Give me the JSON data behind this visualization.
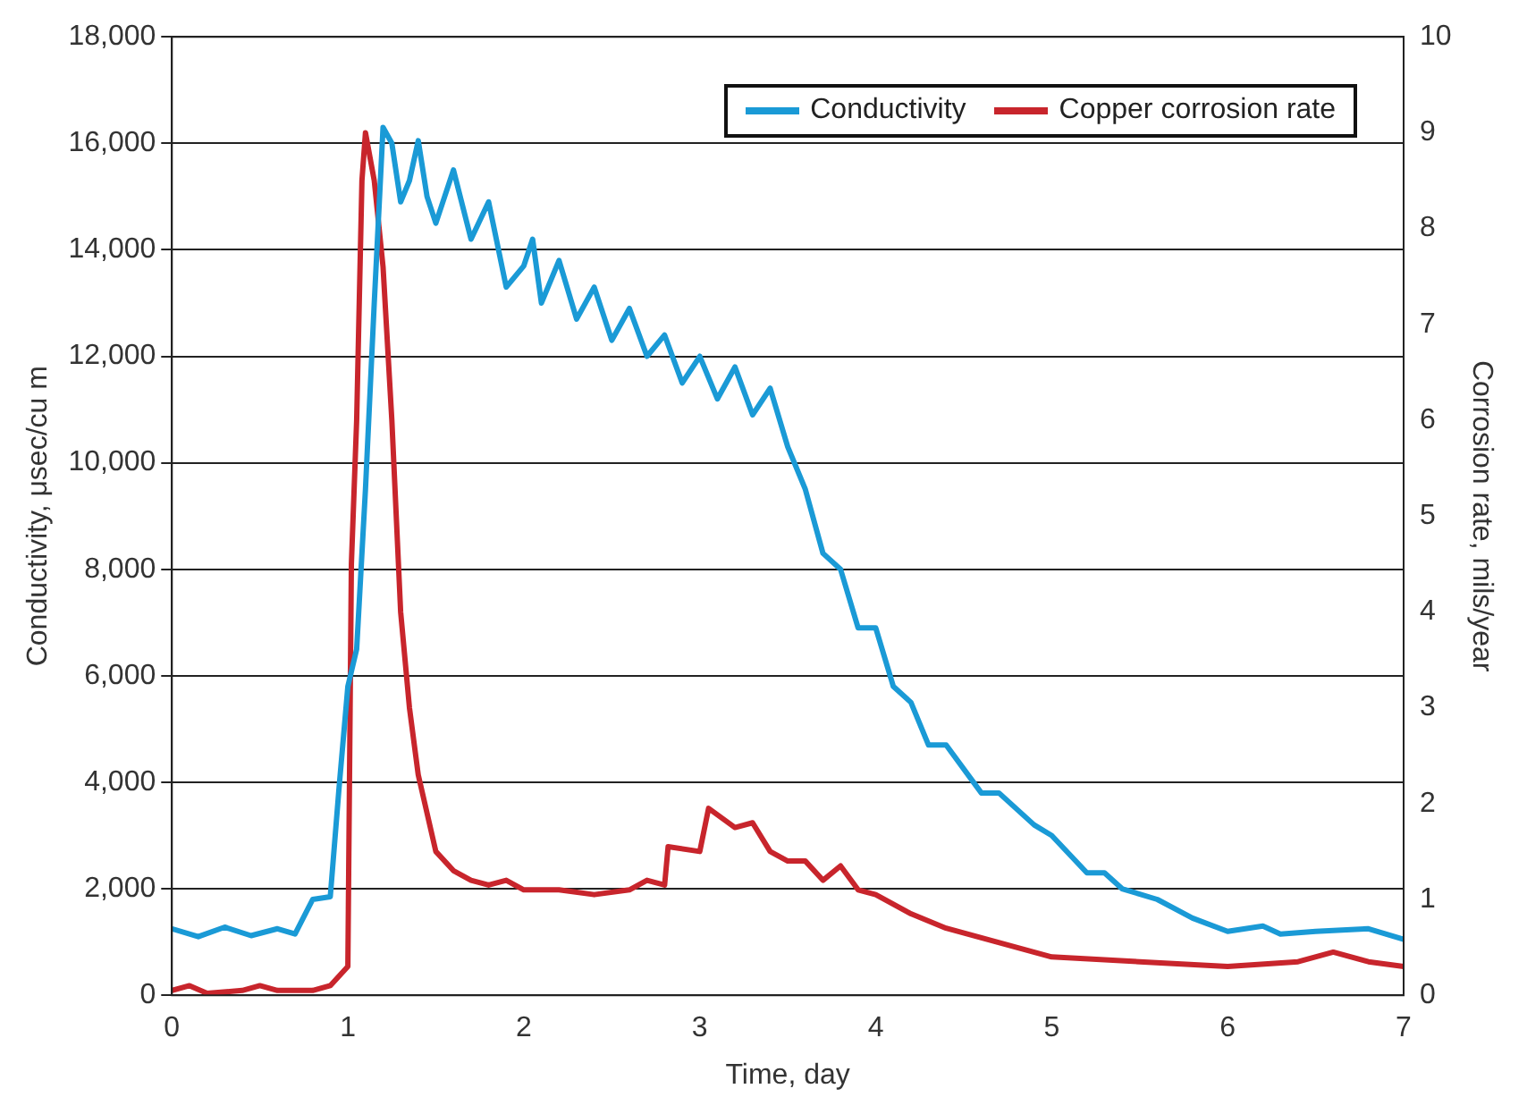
{
  "chart_data": {
    "type": "line",
    "xlabel": "Time, day",
    "ylabel": "Conductivity, μsec/cu m",
    "y2label": "Corrosion rate, mils/year",
    "xlim": [
      0,
      7
    ],
    "xticks": [
      0,
      1,
      2,
      3,
      4,
      5,
      6,
      7
    ],
    "ylim": [
      0,
      18000
    ],
    "yticks": [
      0,
      {
        "value": 2000,
        "label": "2,000"
      },
      {
        "value": 4000,
        "label": "4,000"
      },
      {
        "value": 6000,
        "label": "6,000"
      },
      {
        "value": 8000,
        "label": "8,000"
      },
      {
        "value": 10000,
        "label": "10,000"
      },
      {
        "value": 12000,
        "label": "12,000"
      },
      {
        "value": 14000,
        "label": "14,000"
      },
      {
        "value": 16000,
        "label": "16,000"
      },
      {
        "value": 18000,
        "label": "18,000"
      }
    ],
    "y2lim": [
      0,
      10
    ],
    "y2ticks": [
      0,
      1,
      2,
      3,
      4,
      5,
      6,
      7,
      8,
      9,
      10
    ],
    "grid": "y",
    "legend": "top right",
    "marker": "none",
    "line_style": "solid",
    "series": [
      {
        "name": "Conductivity",
        "color": "#1a9ad6",
        "x": [
          0,
          0.15,
          0.3,
          0.45,
          0.6,
          0.7,
          0.8,
          0.9,
          0.95,
          1.0,
          1.05,
          1.1,
          1.15,
          1.2,
          1.25,
          1.3,
          1.35,
          1.4,
          1.45,
          1.5,
          1.6,
          1.7,
          1.8,
          1.9,
          2.0,
          2.05,
          2.1,
          2.2,
          2.3,
          2.4,
          2.5,
          2.6,
          2.7,
          2.8,
          2.9,
          3.0,
          3.1,
          3.2,
          3.3,
          3.4,
          3.5,
          3.6,
          3.7,
          3.8,
          3.9,
          4.0,
          4.1,
          4.2,
          4.3,
          4.4,
          4.6,
          4.7,
          4.9,
          5.0,
          5.2,
          5.3,
          5.4,
          5.6,
          5.8,
          6.0,
          6.2,
          6.3,
          6.5,
          6.8,
          7.0
        ],
        "values": [
          1250,
          1100,
          1280,
          1120,
          1250,
          1150,
          1800,
          1850,
          3900,
          5800,
          6500,
          9500,
          13000,
          16300,
          16000,
          14900,
          15300,
          16050,
          15000,
          14500,
          15500,
          14200,
          14900,
          13300,
          13700,
          14200,
          13000,
          13800,
          12700,
          13300,
          12300,
          12900,
          12000,
          12400,
          11500,
          12000,
          11200,
          11800,
          10900,
          11400,
          10300,
          9500,
          8300,
          8000,
          6900,
          6900,
          5800,
          5500,
          4700,
          4700,
          3800,
          3800,
          3200,
          3000,
          2300,
          2300,
          2000,
          1800,
          1450,
          1200,
          1300,
          1150,
          1200,
          1250,
          1050
        ]
      },
      {
        "name": "Copper corrosion rate",
        "color": "#c8252c",
        "axis": "y2",
        "x": [
          0,
          0.1,
          0.2,
          0.4,
          0.5,
          0.6,
          0.8,
          0.9,
          1.0,
          1.02,
          1.05,
          1.08,
          1.1,
          1.15,
          1.2,
          1.25,
          1.3,
          1.35,
          1.4,
          1.5,
          1.6,
          1.7,
          1.8,
          1.9,
          2.0,
          2.2,
          2.4,
          2.6,
          2.7,
          2.8,
          2.82,
          3.0,
          3.05,
          3.2,
          3.3,
          3.4,
          3.5,
          3.6,
          3.7,
          3.8,
          3.9,
          4.0,
          4.2,
          4.4,
          4.6,
          4.8,
          5.0,
          5.5,
          6.0,
          6.4,
          6.6,
          6.8,
          7.0
        ],
        "values": [
          0.05,
          0.1,
          0.02,
          0.05,
          0.1,
          0.05,
          0.05,
          0.1,
          0.3,
          4.5,
          6,
          8.5,
          9,
          8.5,
          7.6,
          6,
          4,
          3,
          2.3,
          1.5,
          1.3,
          1.2,
          1.15,
          1.2,
          1.1,
          1.1,
          1.05,
          1.1,
          1.2,
          1.15,
          1.55,
          1.5,
          1.95,
          1.75,
          1.8,
          1.5,
          1.4,
          1.4,
          1.2,
          1.35,
          1.1,
          1.05,
          0.85,
          0.7,
          0.6,
          0.5,
          0.4,
          0.35,
          0.3,
          0.35,
          0.45,
          0.35,
          0.3
        ]
      }
    ]
  }
}
